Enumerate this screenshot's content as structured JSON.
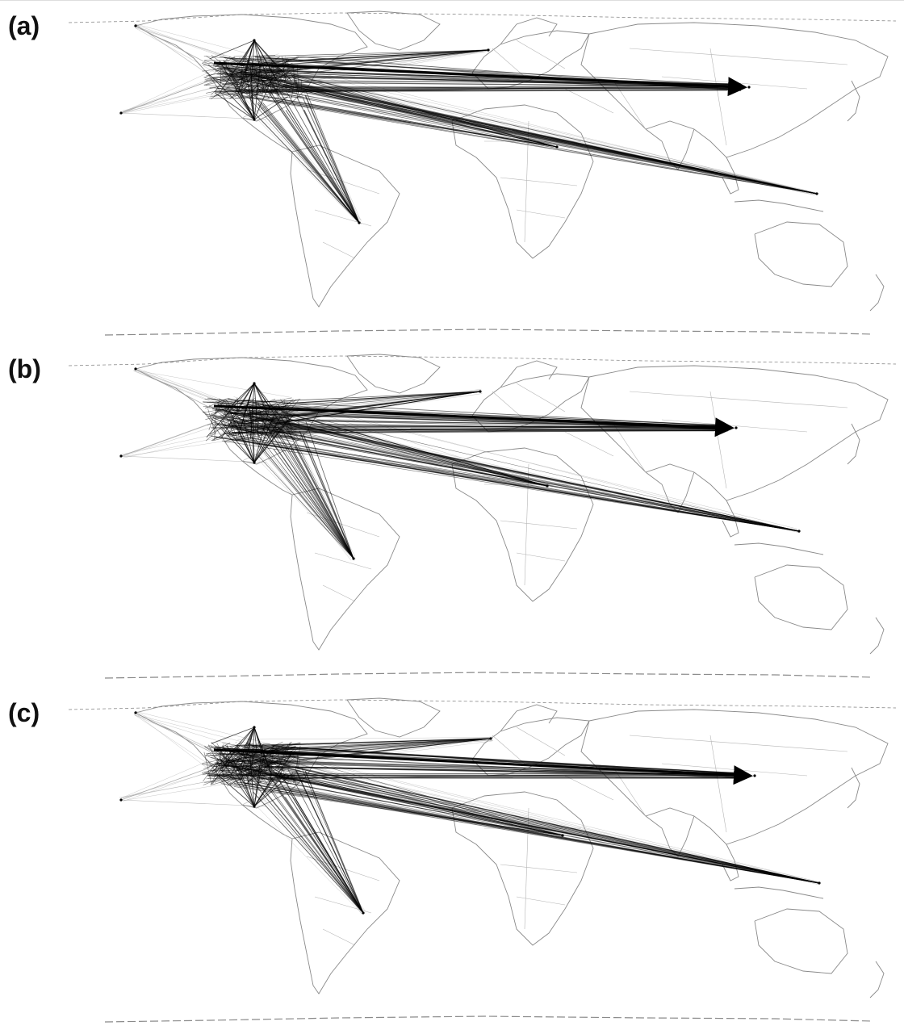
{
  "panels": [
    {
      "label": "(a)"
    },
    {
      "label": "(b)"
    },
    {
      "label": "(c)"
    }
  ],
  "colors": {
    "background": "#ffffff",
    "coastline": "#8a8a8a",
    "border": "#b5b5b5",
    "flow_light": "#9a9a9a",
    "flow_dark": "#000000"
  }
}
